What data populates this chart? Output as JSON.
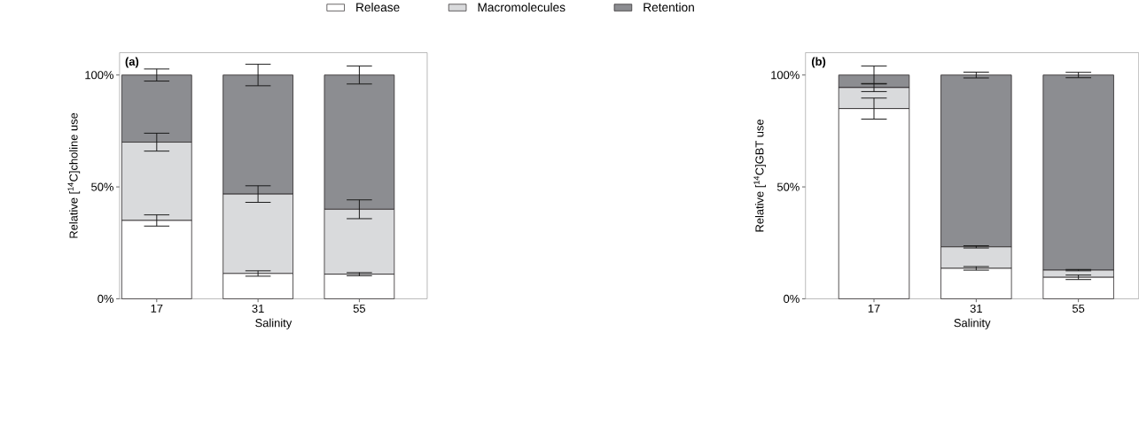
{
  "chart_data": [
    {
      "type": "bar",
      "stacked": true,
      "annotations": [
        "(a)"
      ],
      "categories": [
        "17",
        "31",
        "55"
      ],
      "xlabel": "Salinity",
      "ylabel": "Relative [$^{14}$C]choline use",
      "ylim": [
        0,
        110
      ],
      "yticks": [
        {
          "value": 0,
          "label": "0%"
        },
        {
          "value": 50,
          "label": "50%"
        },
        {
          "value": 100,
          "label": "100%"
        }
      ],
      "legend": "top",
      "series": [
        {
          "name": "Release",
          "color": "#ffffff",
          "values": [
            35,
            11.3,
            11
          ],
          "errors": [
            2.5,
            1.2,
            0.7
          ]
        },
        {
          "name": "Macromolecules",
          "color": "#d9dadc",
          "values": [
            35,
            35.5,
            29
          ],
          "errors": [
            4,
            3.7,
            4.2
          ]
        },
        {
          "name": "Retention",
          "color": "#8c8d91",
          "values": [
            30,
            53.2,
            60
          ],
          "errors": [
            2.7,
            4.8,
            4
          ]
        }
      ]
    },
    {
      "type": "bar",
      "stacked": true,
      "annotations": [
        "(b)"
      ],
      "categories": [
        "17",
        "31",
        "55"
      ],
      "xlabel": "Salinity",
      "ylabel": "Relative [$^{14}$C]GBT use",
      "ylim": [
        0,
        110
      ],
      "yticks": [
        {
          "value": 0,
          "label": "0%"
        },
        {
          "value": 50,
          "label": "50%"
        },
        {
          "value": 100,
          "label": "100%"
        }
      ],
      "series": [
        {
          "color": "#ffffff",
          "values": [
            85,
            13.6,
            9.6
          ],
          "errors": [
            4.7,
            0.8,
            1
          ]
        },
        {
          "color": "#d9dadc",
          "values": [
            9.4,
            9.6,
            3.2
          ],
          "errors": [
            1.8,
            0.5,
            0.3
          ]
        },
        {
          "color": "#8c8d91",
          "values": [
            5.6,
            76.8,
            87.2
          ],
          "errors": [
            4,
            1.3,
            1.2
          ]
        }
      ]
    }
  ]
}
